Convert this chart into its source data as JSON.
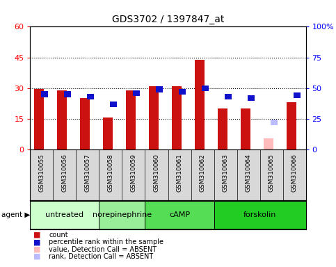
{
  "title": "GDS3702 / 1397847_at",
  "samples": [
    "GSM310055",
    "GSM310056",
    "GSM310057",
    "GSM310058",
    "GSM310059",
    "GSM310060",
    "GSM310061",
    "GSM310062",
    "GSM310063",
    "GSM310064",
    "GSM310065",
    "GSM310066"
  ],
  "count_values": [
    29.5,
    29.0,
    25.0,
    15.5,
    29.0,
    31.0,
    31.0,
    44.0,
    20.0,
    20.0,
    5.5,
    23.0
  ],
  "rank_values": [
    45.0,
    45.0,
    43.0,
    37.0,
    46.0,
    49.0,
    47.0,
    50.0,
    43.0,
    42.0,
    22.0,
    44.0
  ],
  "absent_flag": [
    false,
    false,
    false,
    false,
    false,
    false,
    false,
    false,
    false,
    false,
    true,
    false
  ],
  "agents": [
    {
      "label": "untreated",
      "start": 0,
      "end": 3,
      "color": "#ccffcc"
    },
    {
      "label": "norepinephrine",
      "start": 3,
      "end": 5,
      "color": "#99ee99"
    },
    {
      "label": "cAMP",
      "start": 5,
      "end": 8,
      "color": "#55dd55"
    },
    {
      "label": "forskolin",
      "start": 8,
      "end": 12,
      "color": "#22cc22"
    }
  ],
  "left_ylim": [
    0,
    60
  ],
  "left_yticks": [
    0,
    15,
    30,
    45,
    60
  ],
  "left_ytick_labels": [
    "0",
    "15",
    "30",
    "45",
    "60"
  ],
  "right_ylim": [
    0,
    100
  ],
  "right_yticks": [
    0,
    25,
    50,
    75,
    100
  ],
  "right_ytick_labels": [
    "0",
    "25",
    "50",
    "75",
    "100%"
  ],
  "count_color": "#cc1111",
  "rank_color": "#1111cc",
  "absent_count_color": "#ffbbbb",
  "absent_rank_color": "#bbbbff",
  "legend_items": [
    {
      "color": "#cc1111",
      "label": "count"
    },
    {
      "color": "#1111cc",
      "label": "percentile rank within the sample"
    },
    {
      "color": "#ffbbbb",
      "label": "value, Detection Call = ABSENT"
    },
    {
      "color": "#bbbbff",
      "label": "rank, Detection Call = ABSENT"
    }
  ],
  "bg_color": "#d8d8d8",
  "title_fontsize": 10,
  "tick_label_fontsize": 6.5,
  "agent_label_fontsize": 8
}
